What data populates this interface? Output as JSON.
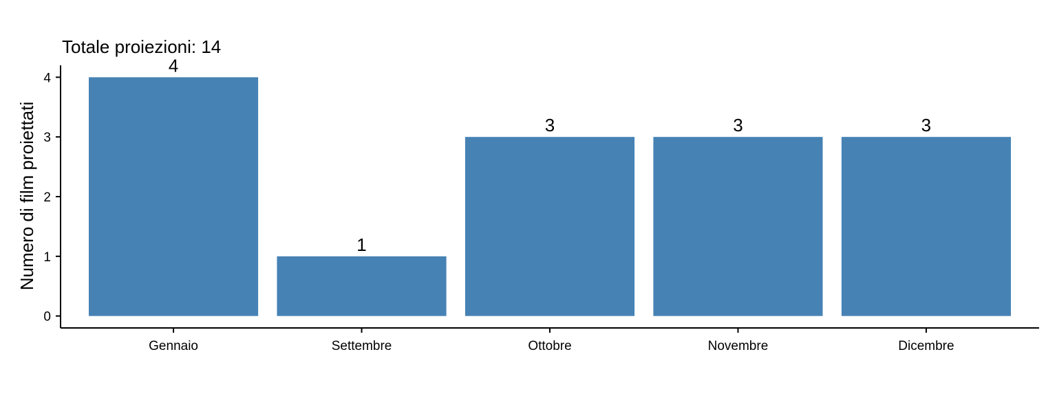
{
  "chart_data": {
    "type": "bar",
    "subtitle": "Totale proiezioni: 14",
    "xlabel": "",
    "ylabel": "Numero di film proiettati",
    "categories": [
      "Gennaio",
      "Settembre",
      "Ottobre",
      "Novembre",
      "Dicembre"
    ],
    "values": [
      4,
      1,
      3,
      3,
      3
    ],
    "data_labels": [
      "4",
      "1",
      "3",
      "3",
      "3"
    ],
    "y_ticks": [
      0,
      1,
      2,
      3,
      4
    ],
    "ylim": [
      -0.2,
      4.2
    ],
    "bar_color": "#4682B4",
    "grid": false,
    "legend": "none"
  }
}
